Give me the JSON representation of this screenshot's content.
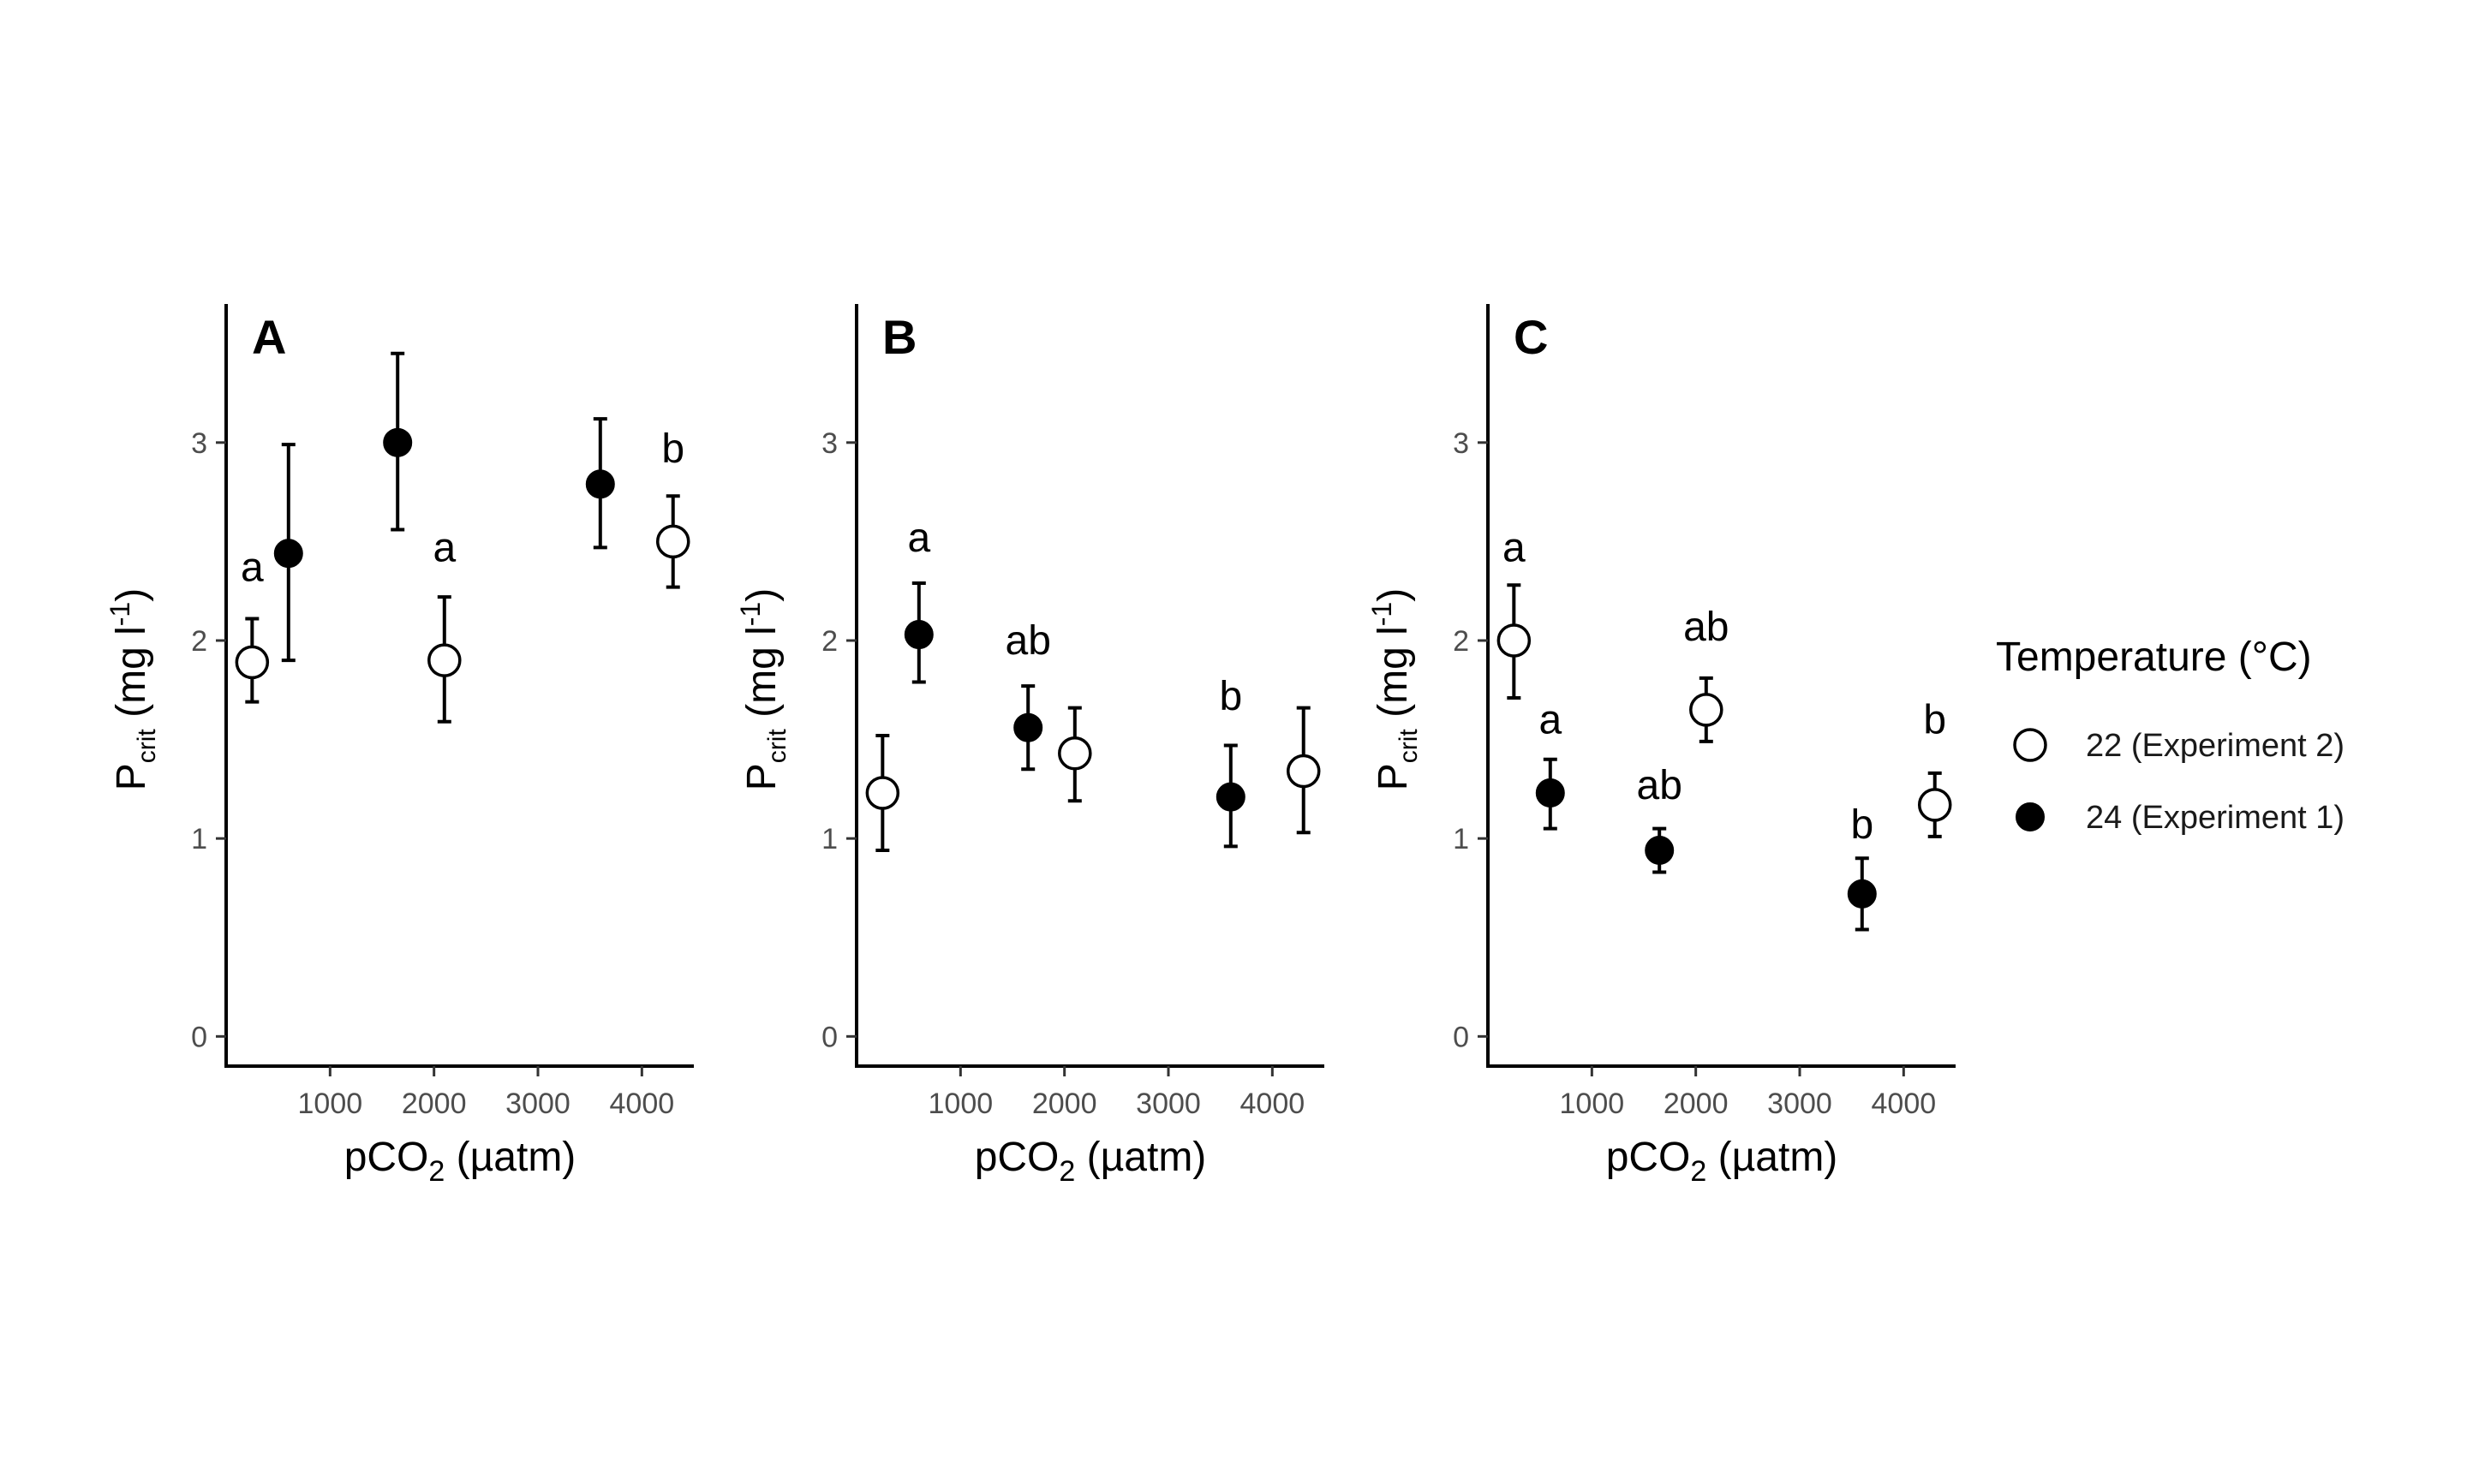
{
  "chart_data": [
    {
      "type": "scatter",
      "panel_label": "A",
      "xlabel": {
        "main": "pCO",
        "sub": "2",
        "tail": " (µatm)"
      },
      "ylabel": {
        "main": "P",
        "sub": "crit",
        "mid": " (mg l",
        "sup": "-1",
        "tail": ")"
      },
      "xlim": [
        0,
        4500
      ],
      "ylim": [
        -0.15,
        3.7
      ],
      "xticks": [
        1000,
        2000,
        3000,
        4000
      ],
      "xtick_labels": [
        "1000",
        "2000",
        "3000",
        "4000"
      ],
      "yticks": [
        0,
        1,
        2,
        3
      ],
      "ytick_labels": [
        "0",
        "1",
        "2",
        "3"
      ],
      "grid": false,
      "series": [
        {
          "name": "22 (Experiment 2)",
          "marker": "open-circle",
          "points": [
            {
              "x": 250,
              "y": 1.89,
              "lo": 1.69,
              "hi": 2.11
            },
            {
              "x": 2100,
              "y": 1.9,
              "lo": 1.59,
              "hi": 2.22
            },
            {
              "x": 4300,
              "y": 2.5,
              "lo": 2.27,
              "hi": 2.73
            }
          ]
        },
        {
          "name": "24 (Experiment 1)",
          "marker": "filled-circle",
          "points": [
            {
              "x": 600,
              "y": 2.44,
              "lo": 1.9,
              "hi": 2.99
            },
            {
              "x": 1650,
              "y": 3.0,
              "lo": 2.56,
              "hi": 3.45
            },
            {
              "x": 3600,
              "y": 2.79,
              "lo": 2.47,
              "hi": 3.12
            }
          ]
        }
      ],
      "annotations": [
        {
          "text": "a",
          "x": 250,
          "y": 2.3
        },
        {
          "text": "a",
          "x": 2100,
          "y": 2.4
        },
        {
          "text": "b",
          "x": 4300,
          "y": 2.9
        }
      ]
    },
    {
      "type": "scatter",
      "panel_label": "B",
      "xlabel": {
        "main": "pCO",
        "sub": "2",
        "tail": " (µatm)"
      },
      "ylabel": {
        "main": "P",
        "sub": "crit",
        "mid": " (mg l",
        "sup": "-1",
        "tail": ")"
      },
      "xlim": [
        0,
        4500
      ],
      "ylim": [
        -0.15,
        3.7
      ],
      "xticks": [
        1000,
        2000,
        3000,
        4000
      ],
      "xtick_labels": [
        "1000",
        "2000",
        "3000",
        "4000"
      ],
      "yticks": [
        0,
        1,
        2,
        3
      ],
      "ytick_labels": [
        "0",
        "1",
        "2",
        "3"
      ],
      "grid": false,
      "series": [
        {
          "name": "22 (Experiment 2)",
          "marker": "open-circle",
          "points": [
            {
              "x": 250,
              "y": 1.23,
              "lo": 0.94,
              "hi": 1.52
            },
            {
              "x": 2100,
              "y": 1.43,
              "lo": 1.19,
              "hi": 1.66
            },
            {
              "x": 4300,
              "y": 1.34,
              "lo": 1.03,
              "hi": 1.66
            }
          ]
        },
        {
          "name": "24 (Experiment 1)",
          "marker": "filled-circle",
          "points": [
            {
              "x": 600,
              "y": 2.03,
              "lo": 1.79,
              "hi": 2.29
            },
            {
              "x": 1650,
              "y": 1.56,
              "lo": 1.35,
              "hi": 1.77
            },
            {
              "x": 3600,
              "y": 1.21,
              "lo": 0.96,
              "hi": 1.47
            }
          ]
        }
      ],
      "annotations": [
        {
          "text": "a",
          "x": 600,
          "y": 2.45
        },
        {
          "text": "ab",
          "x": 1650,
          "y": 1.93
        },
        {
          "text": "b",
          "x": 3600,
          "y": 1.65
        }
      ]
    },
    {
      "type": "scatter",
      "panel_label": "C",
      "xlabel": {
        "main": "pCO",
        "sub": "2",
        "tail": " (µatm)"
      },
      "ylabel": {
        "main": "P",
        "sub": "crit",
        "mid": " (mg l",
        "sup": "-1",
        "tail": ")"
      },
      "xlim": [
        0,
        4500
      ],
      "ylim": [
        -0.15,
        3.7
      ],
      "xticks": [
        1000,
        2000,
        3000,
        4000
      ],
      "xtick_labels": [
        "1000",
        "2000",
        "3000",
        "4000"
      ],
      "yticks": [
        0,
        1,
        2,
        3
      ],
      "ytick_labels": [
        "0",
        "1",
        "2",
        "3"
      ],
      "grid": false,
      "series": [
        {
          "name": "22 (Experiment 2)",
          "marker": "open-circle",
          "points": [
            {
              "x": 250,
              "y": 2.0,
              "lo": 1.71,
              "hi": 2.28
            },
            {
              "x": 2100,
              "y": 1.65,
              "lo": 1.49,
              "hi": 1.81
            },
            {
              "x": 4300,
              "y": 1.17,
              "lo": 1.01,
              "hi": 1.33
            }
          ]
        },
        {
          "name": "24 (Experiment 1)",
          "marker": "filled-circle",
          "points": [
            {
              "x": 600,
              "y": 1.23,
              "lo": 1.05,
              "hi": 1.4
            },
            {
              "x": 1650,
              "y": 0.94,
              "lo": 0.83,
              "hi": 1.05
            },
            {
              "x": 3600,
              "y": 0.72,
              "lo": 0.54,
              "hi": 0.9
            }
          ]
        }
      ],
      "annotations": [
        {
          "text": "a",
          "x": 250,
          "y": 2.4
        },
        {
          "text": "a",
          "x": 600,
          "y": 1.53
        },
        {
          "text": "ab",
          "x": 2100,
          "y": 2.0
        },
        {
          "text": "ab",
          "x": 1650,
          "y": 1.2
        },
        {
          "text": "b",
          "x": 3600,
          "y": 1.0
        },
        {
          "text": "b",
          "x": 4300,
          "y": 1.53
        }
      ]
    }
  ],
  "legend": {
    "title": "Temperature (°C)",
    "placement": "right",
    "entries": [
      {
        "label": "22 (Experiment 2)",
        "marker": "open-circle"
      },
      {
        "label": "24 (Experiment 1)",
        "marker": "filled-circle"
      }
    ]
  },
  "colors": {
    "axis": "#000000",
    "tick_text": "#4d4d4d",
    "marker": "#000000",
    "background": "#ffffff"
  }
}
